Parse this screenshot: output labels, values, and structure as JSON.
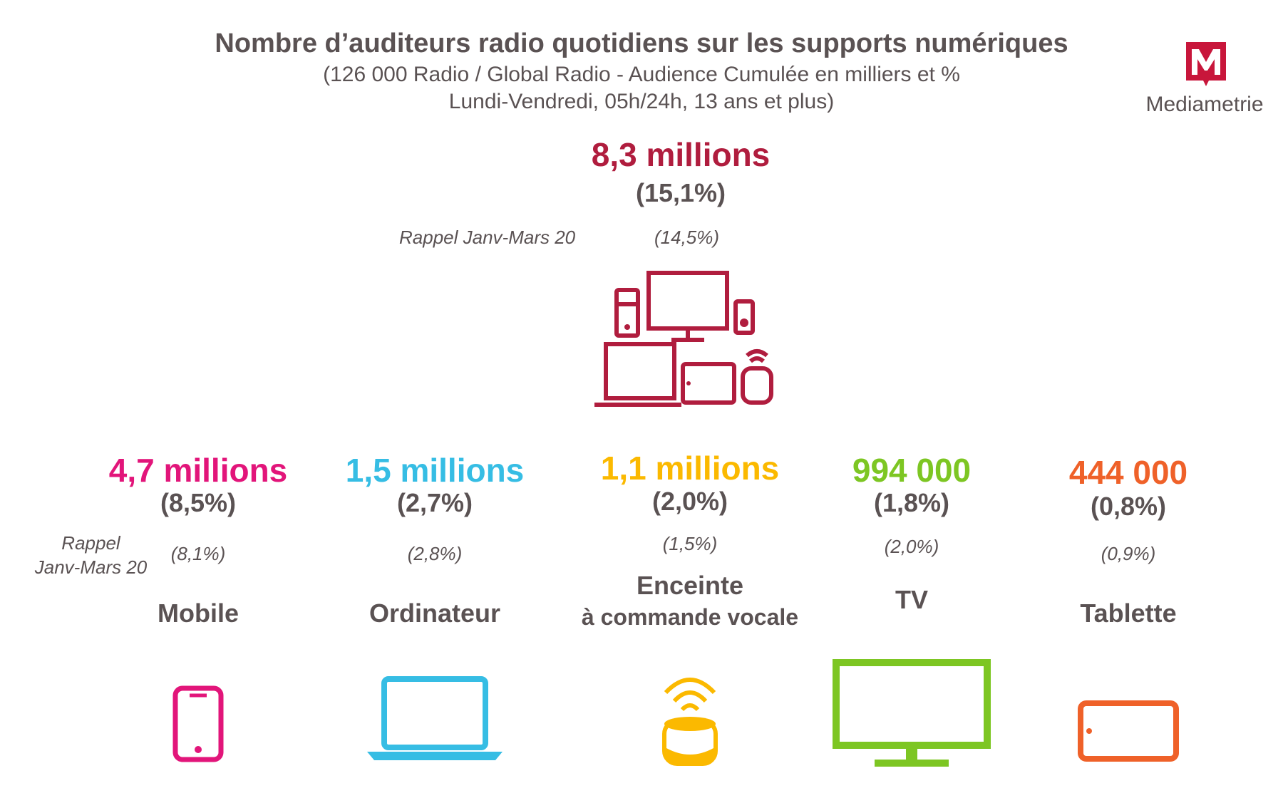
{
  "header": {
    "title": "Nombre d’auditeurs radio quotidiens sur les supports numériques",
    "subtitle_line1": "(126 000 Radio / Global Radio - Audience Cumulée en milliers et %",
    "subtitle_line2": "Lundi-Vendredi, 05h/24h, 13 ans et plus)"
  },
  "logo": {
    "text": "Mediametrie"
  },
  "total": {
    "value": "8,3 millions",
    "pct": "(15,1%)",
    "rappel_label": "Rappel Janv-Mars 20",
    "rappel_pct": "(14,5%)"
  },
  "rappel_label_line1": "Rappel",
  "rappel_label_line2": "Janv-Mars 20",
  "colors": {
    "total": "#b01d3e",
    "mobile": "#e2157a",
    "ordinateur": "#36bde4",
    "enceinte": "#fbb900",
    "tv": "#7dc623",
    "tablette": "#ef6129"
  },
  "chart_data": {
    "type": "table",
    "title": "Nombre d’auditeurs radio quotidiens sur les supports numériques",
    "total": {
      "value": 8300000,
      "value_label": "8,3 millions",
      "pct": 15.1,
      "rappel_pct": 14.5
    },
    "categories": [
      "Mobile",
      "Ordinateur",
      "Enceinte à commande vocale",
      "TV",
      "Tablette"
    ],
    "series": [
      {
        "name": "Audience",
        "values": [
          4700000,
          1500000,
          1100000,
          994000,
          444000
        ]
      },
      {
        "name": "%",
        "values": [
          8.5,
          2.7,
          2.0,
          1.8,
          0.8
        ]
      },
      {
        "name": "Rappel Janv-Mars 20",
        "values": [
          8.1,
          2.8,
          1.5,
          2.0,
          0.9
        ]
      }
    ],
    "devices": [
      {
        "key": "mobile",
        "label1": "Mobile",
        "label2": "",
        "value": "4,7 millions",
        "pct": "(8,5%)",
        "rappel": "(8,1%)",
        "icon": "smartphone-icon",
        "color": "#e2157a"
      },
      {
        "key": "ordinateur",
        "label1": "Ordinateur",
        "label2": "",
        "value": "1,5 millions",
        "pct": "(2,7%)",
        "rappel": "(2,8%)",
        "icon": "laptop-icon",
        "color": "#36bde4"
      },
      {
        "key": "enceinte",
        "label1": "Enceinte",
        "label2": "à commande vocale",
        "value": "1,1 millions",
        "pct": "(2,0%)",
        "rappel": "(1,5%)",
        "icon": "smart-speaker-icon",
        "color": "#fbb900"
      },
      {
        "key": "tv",
        "label1": "TV",
        "label2": "",
        "value": "994 000",
        "pct": "(1,8%)",
        "rappel": "(2,0%)",
        "icon": "tv-icon",
        "color": "#7dc623"
      },
      {
        "key": "tablette",
        "label1": "Tablette",
        "label2": "",
        "value": "444 000",
        "pct": "(0,8%)",
        "rappel": "(0,9%)",
        "icon": "tablet-icon",
        "color": "#ef6129"
      }
    ]
  }
}
